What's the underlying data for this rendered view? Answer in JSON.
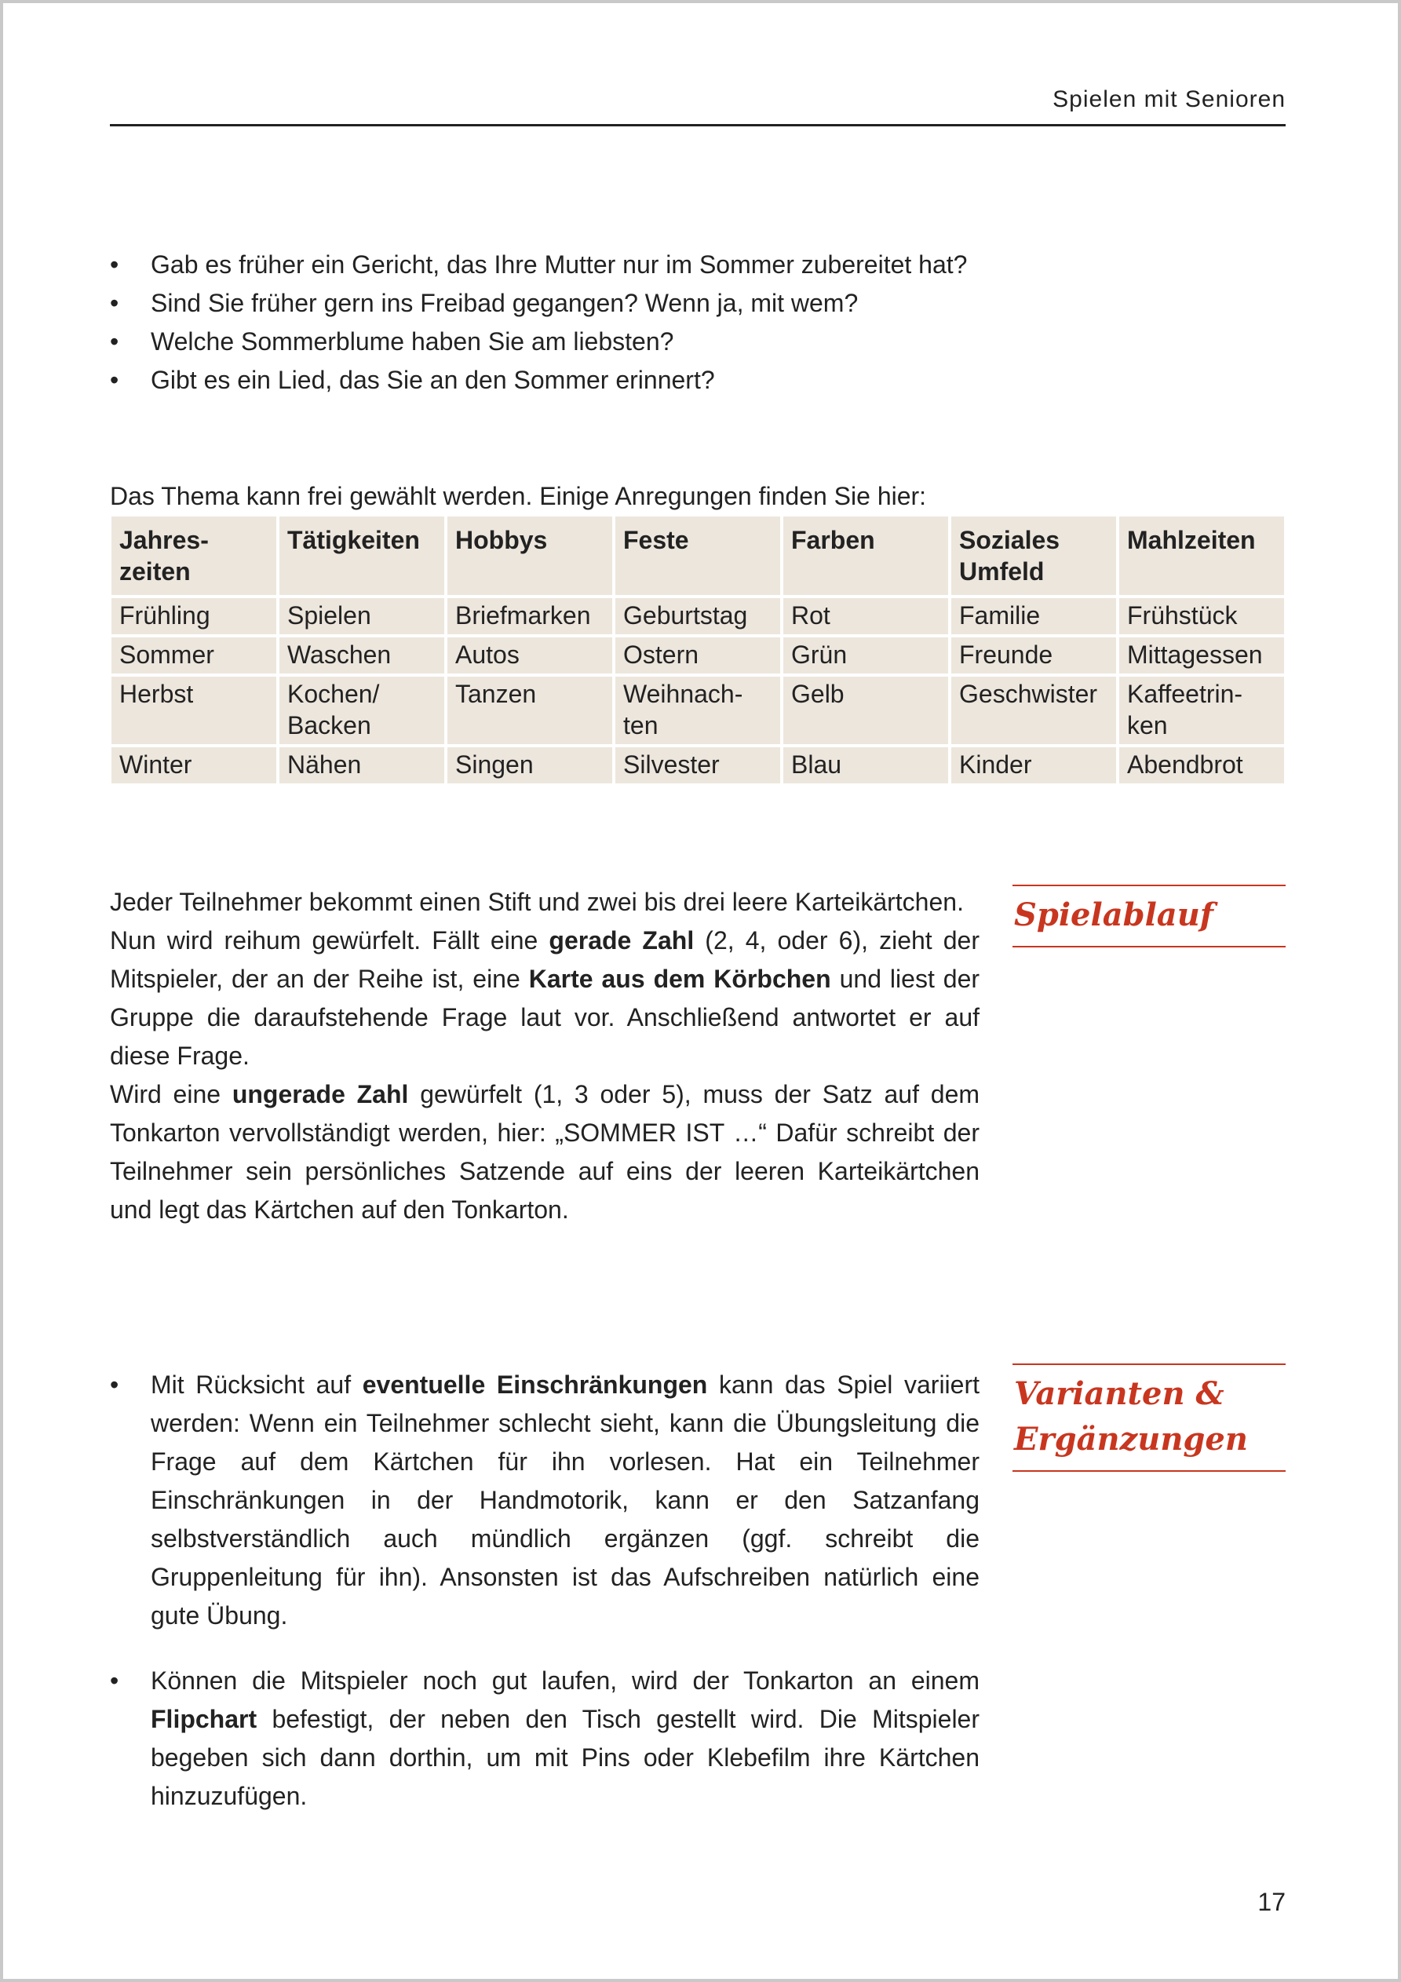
{
  "header": {
    "running_title": "Spielen mit Senioren"
  },
  "questions": [
    "Gab es früher ein Gericht, das Ihre Mutter nur im Sommer zubereitet hat?",
    "Sind Sie früher gern ins Freibad gegangen? Wenn ja, mit wem?",
    "Welche Sommerblume haben Sie am liebsten?",
    "Gibt es ein Lied, das Sie an den Sommer erinnert?"
  ],
  "table_intro": "Das Thema kann frei gewählt werden. Einige Anregungen finden Sie hier:",
  "table": {
    "headers": [
      "Jahres-\nzeiten",
      "Tätigkeiten",
      "Hobbys",
      "Feste",
      "Farben",
      "Soziales\nUmfeld",
      "Mahlzeiten"
    ],
    "rows": [
      [
        "Frühling",
        "Spielen",
        "Briefmarken",
        "Geburtstag",
        "Rot",
        "Familie",
        "Frühstück"
      ],
      [
        "Sommer",
        "Waschen",
        "Autos",
        "Ostern",
        "Grün",
        "Freunde",
        "Mittagessen"
      ],
      [
        "Herbst",
        "Kochen/\nBacken",
        "Tanzen",
        "Weihnach-\nten",
        "Gelb",
        "Geschwister",
        "Kaffeetrin-\nken"
      ],
      [
        "Winter",
        "Nähen",
        "Singen",
        "Silvester",
        "Blau",
        "Kinder",
        "Abendbrot"
      ]
    ],
    "cell_color": "#ede6dd"
  },
  "spielablauf": {
    "heading": "Spielablauf",
    "p1": "Jeder Teilnehmer bekommt einen Stift und zwei bis drei leere Karteikärtchen.",
    "p2": [
      "Nun wird reihum gewürfelt. Fällt eine ",
      "gerade Zahl",
      " (2, 4, oder 6), zieht der Mitspieler, der an der Reihe ist, eine ",
      "Karte aus dem Körbchen",
      " und liest der Gruppe die daraufstehende Frage laut vor. Anschließend antwortet er auf diese Frage."
    ],
    "p3": [
      "Wird eine ",
      "ungerade Zahl",
      " gewürfelt (1, 3 oder 5), muss der Satz auf dem Tonkarton vervollständigt werden, hier: „SOMMER IST …“ Dafür schreibt der Teilnehmer sein persönliches Satzende auf eins der leeren Karteikärtchen und legt das Kärtchen auf den Tonkarton."
    ]
  },
  "varianten": {
    "heading_line1": "Varianten &",
    "heading_line2": "Ergänzungen",
    "b1": [
      "Mit Rücksicht auf ",
      "eventuelle Einschränkungen",
      " kann das Spiel variiert werden: Wenn ein Teilnehmer schlecht sieht, kann die Übungsleitung die Frage auf dem Kärtchen für ihn vorlesen. Hat ein Teilnehmer Einschränkungen in der Handmotorik, kann er den Satzanfang selbstverständlich auch mündlich ergänzen (ggf. schreibt die Gruppenleitung für ihn). Ansonsten ist das Aufschreiben natürlich eine gute Übung."
    ],
    "b2": [
      "Können die Mitspieler noch gut laufen, wird der Tonkarton an einem ",
      "Flipchart",
      " befestigt, der neben den Tisch gestellt wird. Die Mitspieler begeben sich dann dorthin, um mit Pins oder Klebefilm ihre Kärtchen hinzuzufügen."
    ]
  },
  "accent_color": "#c8361f",
  "page_number": "17"
}
